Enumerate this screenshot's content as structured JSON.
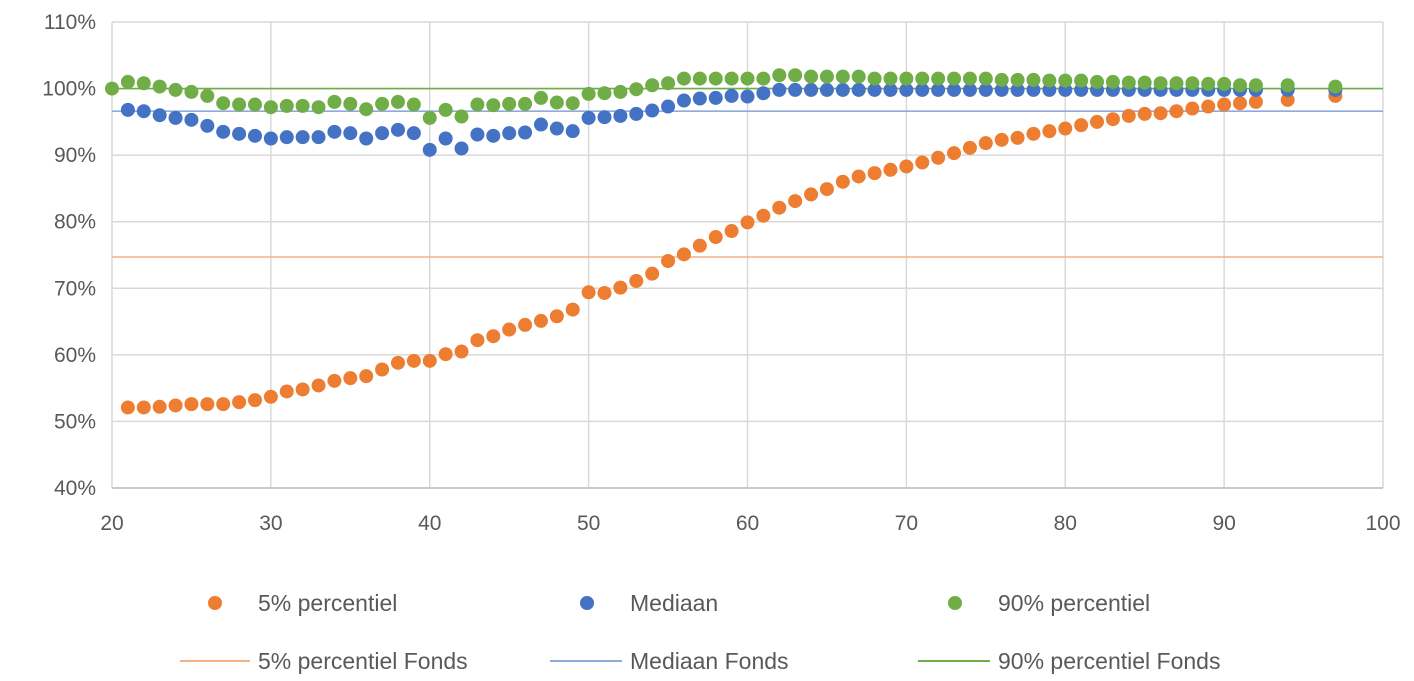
{
  "chart_data": {
    "type": "scatter",
    "title": "",
    "xlabel": "",
    "ylabel": "",
    "xlim": [
      20,
      100
    ],
    "ylim": [
      40,
      110
    ],
    "x_ticks": [
      20,
      30,
      40,
      50,
      60,
      70,
      80,
      90,
      100
    ],
    "x_tick_labels": [
      "20",
      "30",
      "40",
      "50",
      "60",
      "70",
      "80",
      "90",
      "100"
    ],
    "y_ticks": [
      40,
      50,
      60,
      70,
      80,
      90,
      100,
      110
    ],
    "y_tick_labels": [
      "40%",
      "50%",
      "60%",
      "70%",
      "80%",
      "90%",
      "100%",
      "110%"
    ],
    "grid": true,
    "legend_position": "bottom",
    "series": [
      {
        "name": "5% percentiel",
        "kind": "markers",
        "color": "#ED7D31",
        "x": [
          21,
          22,
          23,
          24,
          25,
          26,
          27,
          28,
          29,
          30,
          31,
          32,
          33,
          34,
          35,
          36,
          37,
          38,
          39,
          40,
          41,
          42,
          43,
          44,
          45,
          46,
          47,
          48,
          49,
          50,
          51,
          52,
          53,
          54,
          55,
          56,
          57,
          58,
          59,
          60,
          61,
          62,
          63,
          64,
          65,
          66,
          67,
          68,
          69,
          70,
          71,
          72,
          73,
          74,
          75,
          76,
          77,
          78,
          79,
          80,
          81,
          82,
          83,
          84,
          85,
          86,
          87,
          88,
          89,
          90,
          91,
          92,
          94,
          97
        ],
        "y": [
          52.1,
          52.1,
          52.2,
          52.4,
          52.6,
          52.6,
          52.6,
          52.9,
          53.2,
          53.7,
          54.5,
          54.8,
          55.4,
          56.1,
          56.5,
          56.8,
          57.8,
          58.8,
          59.1,
          59.1,
          60.1,
          60.5,
          62.2,
          62.8,
          63.8,
          64.5,
          65.1,
          65.8,
          66.8,
          69.4,
          69.3,
          70.1,
          71.1,
          72.2,
          74.1,
          75.1,
          76.4,
          77.7,
          78.6,
          79.9,
          80.9,
          82.1,
          83.1,
          84.1,
          84.9,
          86.0,
          86.8,
          87.3,
          87.8,
          88.3,
          88.9,
          89.6,
          90.3,
          91.1,
          91.8,
          92.3,
          92.6,
          93.2,
          93.6,
          94.0,
          94.5,
          95.0,
          95.4,
          95.9,
          96.2,
          96.3,
          96.6,
          97.0,
          97.3,
          97.6,
          97.8,
          98.0,
          98.3,
          98.9
        ]
      },
      {
        "name": "Mediaan",
        "kind": "markers",
        "color": "#4472C4",
        "x": [
          21,
          22,
          23,
          24,
          25,
          26,
          27,
          28,
          29,
          30,
          31,
          32,
          33,
          34,
          35,
          36,
          37,
          38,
          39,
          40,
          41,
          42,
          43,
          44,
          45,
          46,
          47,
          48,
          49,
          50,
          51,
          52,
          53,
          54,
          55,
          56,
          57,
          58,
          59,
          60,
          61,
          62,
          63,
          64,
          65,
          66,
          67,
          68,
          69,
          70,
          71,
          72,
          73,
          74,
          75,
          76,
          77,
          78,
          79,
          80,
          81,
          82,
          83,
          84,
          85,
          86,
          87,
          88,
          89,
          90,
          91,
          92,
          94,
          97
        ],
        "y": [
          96.8,
          96.6,
          96.0,
          95.6,
          95.3,
          94.4,
          93.5,
          93.2,
          92.9,
          92.5,
          92.7,
          92.7,
          92.7,
          93.5,
          93.3,
          92.5,
          93.3,
          93.8,
          93.3,
          90.8,
          92.5,
          91.0,
          93.1,
          92.9,
          93.3,
          93.4,
          94.6,
          94.0,
          93.6,
          95.6,
          95.7,
          95.9,
          96.2,
          96.7,
          97.3,
          98.2,
          98.5,
          98.6,
          98.9,
          98.8,
          99.3,
          99.8,
          99.8,
          99.8,
          99.8,
          99.8,
          99.8,
          99.8,
          99.8,
          99.8,
          99.8,
          99.8,
          99.8,
          99.8,
          99.8,
          99.8,
          99.8,
          99.8,
          99.8,
          99.8,
          99.8,
          99.8,
          99.8,
          99.8,
          99.8,
          99.8,
          99.8,
          99.8,
          99.8,
          99.8,
          99.8,
          99.8,
          99.8,
          99.8
        ]
      },
      {
        "name": "90% percentiel",
        "kind": "markers",
        "color": "#70AD47",
        "x": [
          20,
          21,
          22,
          23,
          24,
          25,
          26,
          27,
          28,
          29,
          30,
          31,
          32,
          33,
          34,
          35,
          36,
          37,
          38,
          39,
          40,
          41,
          42,
          43,
          44,
          45,
          46,
          47,
          48,
          49,
          50,
          51,
          52,
          53,
          54,
          55,
          56,
          57,
          58,
          59,
          60,
          61,
          62,
          63,
          64,
          65,
          66,
          67,
          68,
          69,
          70,
          71,
          72,
          73,
          74,
          75,
          76,
          77,
          78,
          79,
          80,
          81,
          82,
          83,
          84,
          85,
          86,
          87,
          88,
          89,
          90,
          91,
          92,
          94,
          97
        ],
        "y": [
          100.0,
          101.0,
          100.8,
          100.3,
          99.8,
          99.5,
          98.9,
          97.8,
          97.6,
          97.6,
          97.2,
          97.4,
          97.4,
          97.2,
          98.0,
          97.7,
          96.9,
          97.7,
          98.0,
          97.6,
          95.6,
          96.8,
          95.8,
          97.6,
          97.5,
          97.7,
          97.7,
          98.6,
          97.9,
          97.8,
          99.2,
          99.3,
          99.5,
          99.9,
          100.5,
          100.8,
          101.5,
          101.5,
          101.5,
          101.5,
          101.5,
          101.5,
          102.0,
          102.0,
          101.8,
          101.8,
          101.8,
          101.8,
          101.5,
          101.5,
          101.5,
          101.5,
          101.5,
          101.5,
          101.5,
          101.5,
          101.3,
          101.3,
          101.3,
          101.2,
          101.2,
          101.2,
          101.0,
          101.0,
          100.9,
          100.9,
          100.8,
          100.8,
          100.8,
          100.7,
          100.7,
          100.5,
          100.5,
          100.5,
          100.3
        ]
      },
      {
        "name": "5% percentiel Fonds",
        "kind": "line",
        "color": "#F4B183",
        "y": 74.7
      },
      {
        "name": "Mediaan Fonds",
        "kind": "line",
        "color": "#8FAADC",
        "y": 96.6
      },
      {
        "name": "90% percentiel Fonds",
        "kind": "line",
        "color": "#70AD47",
        "y": 100.0
      }
    ]
  },
  "legend": {
    "items": [
      {
        "label": "5% percentiel",
        "kind": "marker",
        "color": "#ED7D31"
      },
      {
        "label": "Mediaan",
        "kind": "marker",
        "color": "#4472C4"
      },
      {
        "label": "90% percentiel",
        "kind": "marker",
        "color": "#70AD47"
      },
      {
        "label": "5% percentiel Fonds",
        "kind": "line",
        "color": "#F4B183"
      },
      {
        "label": "Mediaan Fonds",
        "kind": "line",
        "color": "#8FAADC"
      },
      {
        "label": "90% percentiel Fonds",
        "kind": "line",
        "color": "#70AD47"
      }
    ]
  },
  "colors": {
    "grid": "#D9D9D9",
    "text": "#595959",
    "background": "#FFFFFF"
  }
}
